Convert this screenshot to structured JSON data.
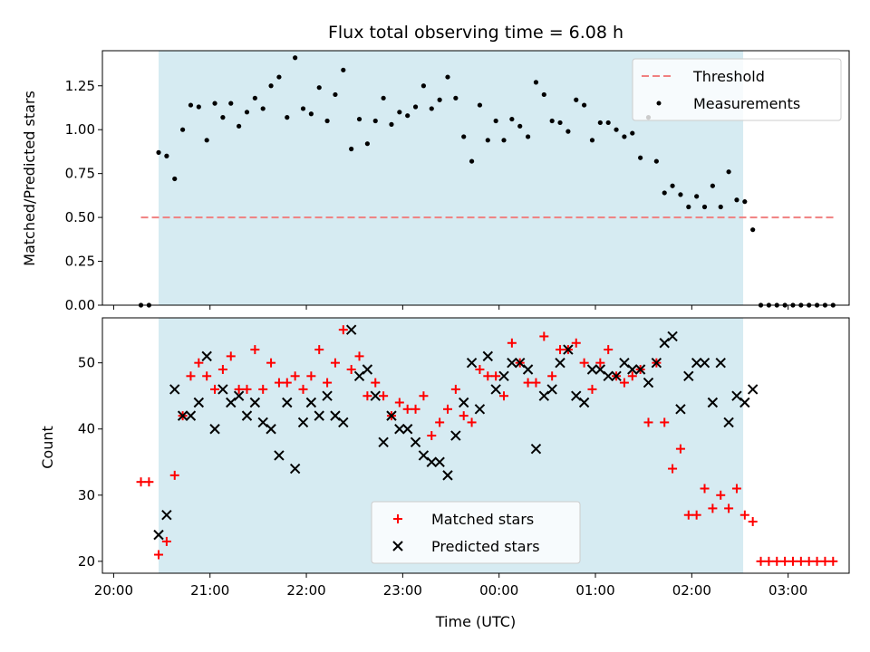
{
  "title": "Flux total observing time = 6.08 h",
  "colors": {
    "observing_span": "#add8e6",
    "threshold": "#f08080",
    "measurements": "#000000",
    "matched": "#ff0000",
    "predicted": "#000000"
  },
  "chart_data": [
    {
      "type": "scatter",
      "panel": "top",
      "ylabel": "Matched/Predicted stars",
      "ylim": [
        0,
        1.45
      ],
      "yticks": [
        "0.00",
        "0.25",
        "0.50",
        "0.75",
        "1.00",
        "1.25"
      ],
      "xlim": [
        "20:00",
        "03:30"
      ],
      "shaded_span": [
        "20:28",
        "02:32"
      ],
      "legend": {
        "placement": "upper right",
        "entries": [
          "Threshold",
          "Measurements"
        ]
      },
      "threshold": {
        "name": "Threshold",
        "value": 0.5,
        "x": [
          "20:17",
          "03:30"
        ]
      },
      "series": [
        {
          "name": "Measurements",
          "x": [
            "20:17",
            "20:22",
            "20:28",
            "20:33",
            "20:38",
            "20:43",
            "20:48",
            "20:53",
            "20:58",
            "21:03",
            "21:08",
            "21:13",
            "21:18",
            "21:23",
            "21:28",
            "21:33",
            "21:38",
            "21:43",
            "21:48",
            "21:53",
            "21:58",
            "22:03",
            "22:08",
            "22:13",
            "22:18",
            "22:23",
            "22:28",
            "22:33",
            "22:38",
            "22:43",
            "22:48",
            "22:53",
            "22:58",
            "23:03",
            "23:08",
            "23:13",
            "23:18",
            "23:23",
            "23:28",
            "23:33",
            "23:38",
            "23:43",
            "23:48",
            "23:53",
            "23:58",
            "00:03",
            "00:08",
            "00:13",
            "00:18",
            "00:23",
            "00:28",
            "00:33",
            "00:38",
            "00:43",
            "00:48",
            "00:53",
            "00:58",
            "01:03",
            "01:08",
            "01:13",
            "01:18",
            "01:23",
            "01:28",
            "01:33",
            "01:38",
            "01:43",
            "01:48",
            "01:53",
            "01:58",
            "02:03",
            "02:08",
            "02:13",
            "02:18",
            "02:23",
            "02:28",
            "02:33",
            "02:38",
            "02:43",
            "02:48",
            "02:53",
            "02:58",
            "03:03",
            "03:08",
            "03:13",
            "03:18",
            "03:23",
            "03:28"
          ],
          "y": [
            0.0,
            0.0,
            0.87,
            0.85,
            0.72,
            1.0,
            1.14,
            1.13,
            0.94,
            1.15,
            1.07,
            1.15,
            1.02,
            1.1,
            1.18,
            1.12,
            1.25,
            1.3,
            1.07,
            1.41,
            1.12,
            1.09,
            1.24,
            1.05,
            1.2,
            1.34,
            0.89,
            1.06,
            0.92,
            1.05,
            1.18,
            1.03,
            1.1,
            1.08,
            1.13,
            1.25,
            1.12,
            1.17,
            1.3,
            1.18,
            0.96,
            0.82,
            1.14,
            0.94,
            1.05,
            0.94,
            1.06,
            1.02,
            0.96,
            1.27,
            1.2,
            1.05,
            1.04,
            0.99,
            1.17,
            1.14,
            0.94,
            1.04,
            1.04,
            1.0,
            0.96,
            0.98,
            0.84,
            1.07,
            0.82,
            0.64,
            0.68,
            0.63,
            0.56,
            0.62,
            0.56,
            0.68,
            0.56,
            0.76,
            0.6,
            0.59,
            0.43,
            0.0,
            0.0,
            0.0,
            0.0,
            0.0,
            0.0,
            0.0,
            0.0,
            0.0,
            0.0
          ]
        }
      ]
    },
    {
      "type": "scatter",
      "panel": "bottom",
      "xlabel": "Time (UTC)",
      "ylabel": "Count",
      "ylim": [
        18.2,
        56.8
      ],
      "yticks": [
        "20",
        "30",
        "40",
        "50"
      ],
      "xlim": [
        "20:00",
        "03:30"
      ],
      "xticks": [
        "20:00",
        "21:00",
        "22:00",
        "23:00",
        "00:00",
        "01:00",
        "02:00",
        "03:00"
      ],
      "shaded_span": [
        "20:28",
        "02:32"
      ],
      "legend": {
        "placement": "lower center",
        "entries": [
          "Matched stars",
          "Predicted stars"
        ]
      },
      "series": [
        {
          "name": "Matched stars",
          "marker": "plus",
          "x": [
            "20:17",
            "20:22",
            "20:28",
            "20:33",
            "20:38",
            "20:43",
            "20:48",
            "20:53",
            "20:58",
            "21:03",
            "21:08",
            "21:13",
            "21:18",
            "21:23",
            "21:28",
            "21:33",
            "21:38",
            "21:43",
            "21:48",
            "21:53",
            "21:58",
            "22:03",
            "22:08",
            "22:13",
            "22:18",
            "22:23",
            "22:28",
            "22:33",
            "22:38",
            "22:43",
            "22:48",
            "22:53",
            "22:58",
            "23:03",
            "23:08",
            "23:13",
            "23:18",
            "23:23",
            "23:28",
            "23:33",
            "23:38",
            "23:43",
            "23:48",
            "23:53",
            "23:58",
            "00:03",
            "00:08",
            "00:13",
            "00:18",
            "00:23",
            "00:28",
            "00:33",
            "00:38",
            "00:43",
            "00:48",
            "00:53",
            "00:58",
            "01:03",
            "01:08",
            "01:13",
            "01:18",
            "01:23",
            "01:28",
            "01:33",
            "01:38",
            "01:43",
            "01:48",
            "01:53",
            "01:58",
            "02:03",
            "02:08",
            "02:13",
            "02:18",
            "02:23",
            "02:28",
            "02:33",
            "02:38",
            "02:43",
            "02:48",
            "02:53",
            "02:58",
            "03:03",
            "03:08",
            "03:13",
            "03:18",
            "03:23",
            "03:28"
          ],
          "y": [
            32,
            32,
            21,
            23,
            33,
            42,
            48,
            50,
            48,
            46,
            49,
            51,
            46,
            46,
            52,
            46,
            50,
            47,
            47,
            48,
            46,
            48,
            52,
            47,
            50,
            55,
            49,
            51,
            45,
            47,
            45,
            42,
            44,
            43,
            43,
            45,
            39,
            41,
            43,
            46,
            42,
            41,
            49,
            48,
            48,
            45,
            53,
            50,
            47,
            47,
            54,
            48,
            52,
            52,
            53,
            50,
            46,
            50,
            52,
            48,
            47,
            48,
            49,
            41,
            50,
            41,
            34,
            37,
            27,
            27,
            31,
            28,
            30,
            28,
            31,
            27,
            26,
            20,
            20,
            20,
            20,
            20,
            20,
            20,
            20,
            20,
            20
          ]
        },
        {
          "name": "Predicted stars",
          "marker": "x",
          "x": [
            "20:28",
            "20:33",
            "20:38",
            "20:43",
            "20:48",
            "20:53",
            "20:58",
            "21:03",
            "21:08",
            "21:13",
            "21:18",
            "21:23",
            "21:28",
            "21:33",
            "21:38",
            "21:43",
            "21:48",
            "21:53",
            "21:58",
            "22:03",
            "22:08",
            "22:13",
            "22:18",
            "22:23",
            "22:28",
            "22:33",
            "22:38",
            "22:43",
            "22:48",
            "22:53",
            "22:58",
            "23:03",
            "23:08",
            "23:13",
            "23:18",
            "23:23",
            "23:28",
            "23:33",
            "23:38",
            "23:43",
            "23:48",
            "23:53",
            "23:58",
            "00:03",
            "00:08",
            "00:13",
            "00:18",
            "00:23",
            "00:28",
            "00:33",
            "00:38",
            "00:43",
            "00:48",
            "00:53",
            "00:58",
            "01:03",
            "01:08",
            "01:13",
            "01:18",
            "01:23",
            "01:28",
            "01:33",
            "01:38",
            "01:43",
            "01:48",
            "01:53",
            "01:58",
            "02:03",
            "02:08",
            "02:13",
            "02:18",
            "02:23",
            "02:28",
            "02:33",
            "02:38"
          ],
          "y": [
            24,
            27,
            46,
            42,
            42,
            44,
            51,
            40,
            46,
            44,
            45,
            42,
            44,
            41,
            40,
            36,
            44,
            34,
            41,
            44,
            42,
            45,
            42,
            41,
            55,
            48,
            49,
            45,
            38,
            42,
            40,
            40,
            38,
            36,
            35,
            35,
            33,
            39,
            44,
            50,
            43,
            51,
            46,
            48,
            50,
            50,
            49,
            37,
            45,
            46,
            50,
            52,
            45,
            44,
            49,
            49,
            48,
            48,
            50,
            49,
            49,
            47,
            50,
            53,
            54,
            43,
            48,
            50,
            50,
            44,
            50,
            41,
            45,
            44,
            46
          ]
        }
      ]
    }
  ]
}
